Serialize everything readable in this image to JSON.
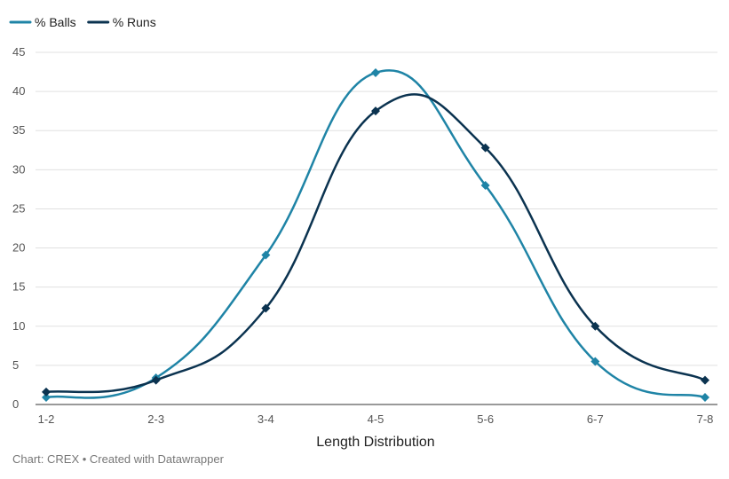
{
  "chart_data": {
    "type": "line",
    "title": "",
    "xlabel": "Length Distribution",
    "ylabel": "",
    "categories": [
      "1-2",
      "2-3",
      "3-4",
      "4-5",
      "5-6",
      "6-7",
      "7-8"
    ],
    "ylim": [
      0,
      45
    ],
    "yticks": [
      0,
      5,
      10,
      15,
      20,
      25,
      30,
      35,
      40,
      45
    ],
    "grid": true,
    "legend_position": "top-left",
    "series": [
      {
        "name": "% Balls",
        "color": "#1f84a6",
        "marker": "diamond",
        "values": [
          0.9,
          3.4,
          19.1,
          42.4,
          28.0,
          5.5,
          0.9
        ]
      },
      {
        "name": "% Runs",
        "color": "#0b3350",
        "marker": "diamond",
        "values": [
          1.6,
          3.1,
          12.3,
          37.5,
          32.8,
          10.0,
          3.1
        ]
      }
    ]
  },
  "footer": {
    "source": "Chart: CREX • Created with Datawrapper"
  }
}
